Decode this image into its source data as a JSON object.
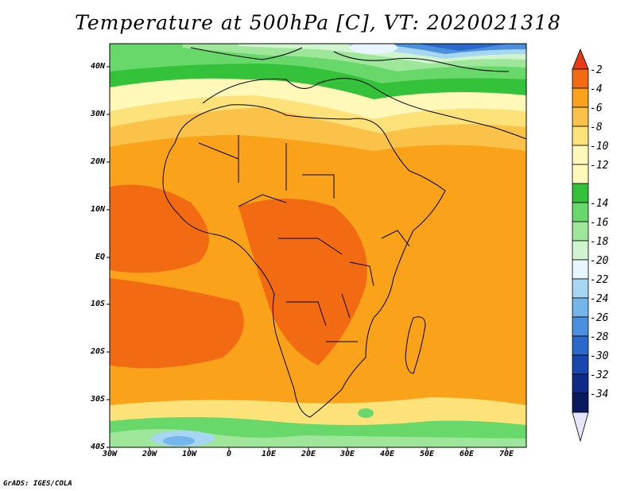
{
  "title": "Temperature at 500hPa [C], VT: 2020021318",
  "map": {
    "lat_labels": [
      "40N",
      "30N",
      "20N",
      "10N",
      "EQ",
      "10S",
      "20S",
      "30S",
      "40S"
    ],
    "lon_labels": [
      "30W",
      "20W",
      "10W",
      "0",
      "10E",
      "20E",
      "30E",
      "40E",
      "50E",
      "60E",
      "70E"
    ],
    "region": "Africa"
  },
  "colorbar": {
    "labels": [
      "-2",
      "-4",
      "-6",
      "-8",
      "-10",
      "-12",
      "-14",
      "-16",
      "-18",
      "-20",
      "-22",
      "-24",
      "-26",
      "-28",
      "-30",
      "-32",
      "-34"
    ],
    "colors": [
      "#e83a14",
      "#f26b12",
      "#f9a21a",
      "#fbc24a",
      "#fde27a",
      "#fff8b8",
      "#33c23a",
      "#68d86a",
      "#9de69a",
      "#d0f4d0",
      "#e6f6fc",
      "#a6d6f2",
      "#74b6ea",
      "#4a90de",
      "#2a68cc",
      "#1a46b0",
      "#0e2a86",
      "#0a1a5c"
    ]
  },
  "credit": "GrADS: IGES/COLA"
}
